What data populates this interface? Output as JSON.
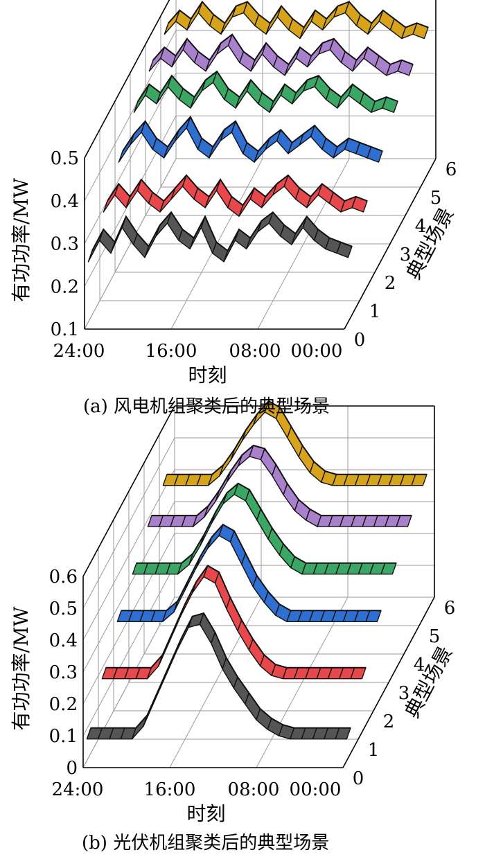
{
  "chart_data": [
    {
      "type": "ribbon3d",
      "caption": "(a)  风电机组聚类后的典型场景",
      "ylabel": "有功功率/MW",
      "xlabel": "时刻",
      "zlabel": "典型场景",
      "ylim": [
        0.1,
        0.5
      ],
      "yticks": [
        "0.1",
        "0.2",
        "0.3",
        "0.4",
        "0.5"
      ],
      "xticks": [
        "24:00",
        "16:00",
        "08:00",
        "00:00"
      ],
      "zticks": [
        "0",
        "1",
        "2",
        "3",
        "4",
        "5",
        "6"
      ],
      "grid": true,
      "series": [
        {
          "color": "#555555",
          "values": [
            0.25,
            0.3,
            0.27,
            0.33,
            0.29,
            0.26,
            0.31,
            0.34,
            0.3,
            0.28,
            0.33,
            0.27,
            0.25,
            0.3,
            0.28,
            0.32,
            0.34,
            0.31,
            0.29,
            0.33,
            0.3,
            0.28,
            0.27,
            0.26
          ]
        },
        {
          "color": "#e8474b",
          "values": [
            0.3,
            0.34,
            0.31,
            0.35,
            0.32,
            0.3,
            0.33,
            0.36,
            0.33,
            0.31,
            0.35,
            0.31,
            0.29,
            0.33,
            0.31,
            0.34,
            0.36,
            0.33,
            0.31,
            0.34,
            0.32,
            0.3,
            0.31,
            0.3
          ]
        },
        {
          "color": "#2f6fd2",
          "values": [
            0.35,
            0.39,
            0.42,
            0.38,
            0.36,
            0.4,
            0.43,
            0.38,
            0.36,
            0.4,
            0.42,
            0.37,
            0.35,
            0.38,
            0.4,
            0.37,
            0.39,
            0.41,
            0.38,
            0.36,
            0.38,
            0.37,
            0.36,
            0.35
          ]
        },
        {
          "color": "#3aa864",
          "values": [
            0.4,
            0.44,
            0.42,
            0.46,
            0.43,
            0.41,
            0.45,
            0.47,
            0.43,
            0.41,
            0.45,
            0.42,
            0.4,
            0.44,
            0.42,
            0.45,
            0.46,
            0.43,
            0.41,
            0.44,
            0.42,
            0.4,
            0.41,
            0.4
          ]
        },
        {
          "color": "#a880cc",
          "values": [
            0.43,
            0.46,
            0.44,
            0.48,
            0.45,
            0.43,
            0.47,
            0.49,
            0.45,
            0.43,
            0.47,
            0.44,
            0.42,
            0.46,
            0.44,
            0.47,
            0.48,
            0.45,
            0.43,
            0.46,
            0.44,
            0.42,
            0.43,
            0.42
          ]
        },
        {
          "color": "#d6a31a",
          "values": [
            0.45,
            0.48,
            0.46,
            0.5,
            0.47,
            0.45,
            0.49,
            0.5,
            0.47,
            0.45,
            0.49,
            0.46,
            0.44,
            0.48,
            0.46,
            0.49,
            0.5,
            0.47,
            0.45,
            0.48,
            0.46,
            0.44,
            0.45,
            0.44
          ]
        }
      ]
    },
    {
      "type": "ribbon3d",
      "caption": "(b)  光伏机组聚类后的典型场景",
      "ylabel": "有功功率/MW",
      "xlabel": "时刻",
      "zlabel": "典型场景",
      "ylim": [
        0,
        0.6
      ],
      "yticks": [
        "0",
        "0.1",
        "0.2",
        "0.3",
        "0.4",
        "0.5",
        "0.6"
      ],
      "xticks": [
        "24:00",
        "16:00",
        "08:00",
        "00:00"
      ],
      "zticks": [
        "0",
        "1",
        "2",
        "3",
        "4",
        "5",
        "6"
      ],
      "grid": true,
      "series": [
        {
          "color": "#555555",
          "values": [
            0.08,
            0.08,
            0.08,
            0.08,
            0.08,
            0.12,
            0.2,
            0.28,
            0.36,
            0.43,
            0.44,
            0.38,
            0.3,
            0.24,
            0.19,
            0.14,
            0.11,
            0.09,
            0.08,
            0.08,
            0.08,
            0.08,
            0.08,
            0.08
          ]
        },
        {
          "color": "#e8474b",
          "values": [
            0.18,
            0.18,
            0.18,
            0.18,
            0.18,
            0.22,
            0.3,
            0.38,
            0.45,
            0.5,
            0.48,
            0.4,
            0.33,
            0.27,
            0.22,
            0.19,
            0.18,
            0.18,
            0.18,
            0.18,
            0.18,
            0.18,
            0.18,
            0.18
          ]
        },
        {
          "color": "#2f6fd2",
          "values": [
            0.27,
            0.27,
            0.27,
            0.27,
            0.27,
            0.3,
            0.37,
            0.44,
            0.5,
            0.54,
            0.52,
            0.45,
            0.38,
            0.33,
            0.29,
            0.27,
            0.27,
            0.27,
            0.27,
            0.27,
            0.27,
            0.27,
            0.27,
            0.27
          ]
        },
        {
          "color": "#3aa864",
          "values": [
            0.33,
            0.33,
            0.33,
            0.33,
            0.33,
            0.36,
            0.42,
            0.49,
            0.55,
            0.58,
            0.56,
            0.5,
            0.44,
            0.39,
            0.35,
            0.33,
            0.33,
            0.33,
            0.33,
            0.33,
            0.33,
            0.33,
            0.33,
            0.33
          ]
        },
        {
          "color": "#a880cc",
          "values": [
            0.39,
            0.39,
            0.39,
            0.39,
            0.39,
            0.42,
            0.47,
            0.53,
            0.58,
            0.61,
            0.6,
            0.55,
            0.49,
            0.44,
            0.41,
            0.39,
            0.39,
            0.39,
            0.39,
            0.39,
            0.39,
            0.39,
            0.39,
            0.39
          ]
        },
        {
          "color": "#d6a31a",
          "values": [
            0.43,
            0.43,
            0.43,
            0.43,
            0.43,
            0.46,
            0.51,
            0.57,
            0.62,
            0.66,
            0.64,
            0.58,
            0.52,
            0.47,
            0.44,
            0.43,
            0.43,
            0.43,
            0.43,
            0.43,
            0.43,
            0.43,
            0.43,
            0.43
          ]
        }
      ]
    }
  ]
}
